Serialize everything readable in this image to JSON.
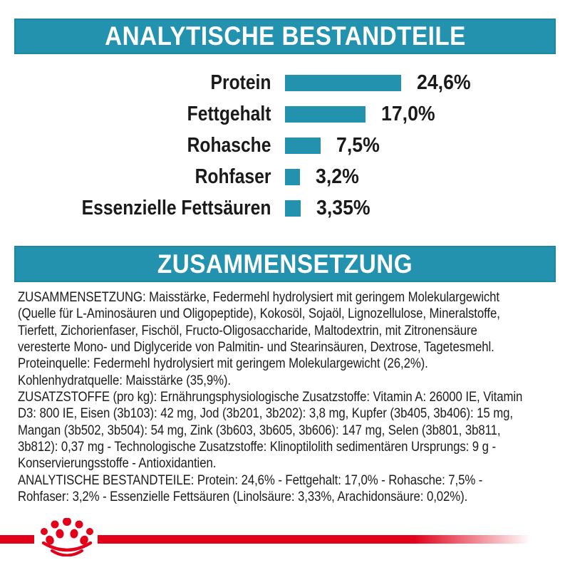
{
  "colors": {
    "teal": "#2292AE",
    "red": "#E2001A",
    "text": "#1C1C1B",
    "background": "#FFFFFF",
    "banner_text": "#FFFFFF"
  },
  "banners": {
    "analytical": "ANALYTISCHE BESTANDTEILE",
    "composition": "ZUSAMMENSETZUNG"
  },
  "chart_data": {
    "type": "bar",
    "orientation": "horizontal",
    "title": "ANALYTISCHE BESTANDTEILE",
    "categories": [
      "Protein",
      "Fettgehalt",
      "Rohasche",
      "Rohfaser",
      "Essenzielle Fettsäuren"
    ],
    "values": [
      24.6,
      17.0,
      7.5,
      3.2,
      3.35
    ],
    "value_labels": [
      "24,6%",
      "17,0%",
      "7,5%",
      "3,2%",
      "3,35%"
    ],
    "unit": "%",
    "bar_color": "#2292AE",
    "xlim": [
      0,
      24.6
    ],
    "grid": false,
    "legend": false,
    "value_label_position": "right-of-bar"
  },
  "composition_text": {
    "lines": [
      "ZUSAMMENSETZUNG: Maisstärke, Federmehl hydrolysiert mit geringem Molekulargewicht",
      "(Quelle für L-Aminosäuren und Oligopeptide), Kokosöl, Sojaöl, Lignozellulose, Mineralstoffe,",
      "Tierfett, Zichorienfaser, Fischöl, Fructo-Oligosaccharide, Maltodextrin, mit Zitronensäure",
      "veresterte Mono- und Diglyceride von Palmitin- und Stearinsäuren, Dextrose, Tagetesmehl.",
      "Proteinquelle: Federmehl hydrolysiert mit geringem Molekulargewicht (26,2%).",
      "Kohlenhydratquelle: Maisstärke (35,9%).",
      "ZUSATZSTOFFE (pro kg): Ernährungsphysiologische Zusatzstoffe: Vitamin A: 26000 IE, Vitamin",
      "D3: 800 IE, Eisen (3b103): 42 mg, Jod (3b201, 3b202): 3,8 mg, Kupfer (3b405, 3b406): 15 mg,",
      "Mangan (3b502, 3b504): 54 mg, Zink (3b603, 3b605, 3b606): 147 mg, Selen (3b801, 3b811,",
      "3b812): 0,37 mg - Technologische Zusatzstoffe: Klinoptilolith sedimentären Ursprungs: 9 g -",
      "Konservierungsstoffe - Antioxidantien.",
      "ANALYTISCHE BESTANDTEILE: Protein: 24,6% - Fettgehalt: 17,0% - Rohasche: 7,5% -",
      "Rohfaser: 3,2% - Essenzielle Fettsäuren (Linolsäure: 3,33%, Arachidonsäure: 0,02%)."
    ]
  },
  "footer": {
    "logo_icon": "royal-canin-crown",
    "accent_color": "#E2001A"
  }
}
